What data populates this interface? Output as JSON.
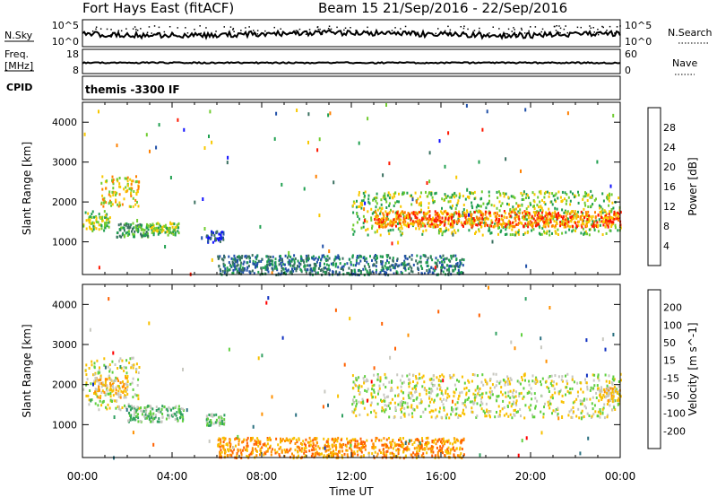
{
  "header": {
    "title": "Fort Hays East (fitACF)",
    "beam_date": "Beam 15  21/Sep/2016 - 22/Sep/2016"
  },
  "strip_panels": {
    "nsky": {
      "left_label": "N.Sky",
      "left_ticks": [
        "10^5",
        "10^0"
      ],
      "right_ticks": [
        "10^5",
        "10^0"
      ],
      "right_label": "N.Search",
      "right_label_style": "dotted"
    },
    "freq": {
      "left_label_line1": "Freq.",
      "left_label_line2": "[MHz]",
      "left_ticks": [
        "18",
        "8"
      ],
      "right_ticks": [
        "60",
        "0"
      ],
      "right_label": "Nave",
      "right_label_style": "dotted"
    },
    "cpid": {
      "left_label": "CPID",
      "program": "themis -3300 IF"
    }
  },
  "x_axis": {
    "label": "Time UT",
    "ticks": [
      "00:00",
      "04:00",
      "08:00",
      "12:00",
      "16:00",
      "20:00",
      "00:00"
    ]
  },
  "chart_data": [
    {
      "type": "heatmap",
      "name": "power",
      "ylabel": "Slant Range [km]",
      "ylim": [
        180,
        4500
      ],
      "y_ticks": [
        1000,
        2000,
        3000,
        4000
      ],
      "xlim_hours": [
        0,
        24
      ],
      "colorbar": {
        "label": "Power [dB]",
        "ticks": [
          4,
          8,
          12,
          16,
          20,
          24,
          28
        ],
        "colors": [
          "#1010ff",
          "#2050a8",
          "#3a7060",
          "#20a050",
          "#70cc30",
          "#f8c800",
          "#ff8000",
          "#ff1800"
        ]
      },
      "regions": [
        {
          "t": [
            0.0,
            1.2
          ],
          "range": [
            1300,
            1800
          ],
          "level": 4
        },
        {
          "t": [
            0.8,
            2.5
          ],
          "range": [
            1900,
            2700
          ],
          "level": 5
        },
        {
          "t": [
            1.5,
            3.0
          ],
          "range": [
            1150,
            1500
          ],
          "level": 3
        },
        {
          "t": [
            3.0,
            4.3
          ],
          "range": [
            1200,
            1500
          ],
          "level": 4
        },
        {
          "t": [
            5.5,
            6.3
          ],
          "range": [
            1000,
            1300
          ],
          "level": 1
        },
        {
          "t": [
            12.0,
            24.0
          ],
          "range": [
            1200,
            2300
          ],
          "level": 4
        },
        {
          "t": [
            13.0,
            24.0
          ],
          "range": [
            1400,
            1800
          ],
          "level": 6
        },
        {
          "t": [
            6.0,
            17.0
          ],
          "range": [
            200,
            700
          ],
          "level": 2
        }
      ]
    },
    {
      "type": "heatmap",
      "name": "velocity",
      "ylabel": "Slant Range [km]",
      "ylim": [
        180,
        4500
      ],
      "y_ticks": [
        1000,
        2000,
        3000,
        4000
      ],
      "xlim_hours": [
        0,
        24
      ],
      "colorbar": {
        "label": "Velocity [m s^-1]",
        "ticks": [
          200,
          100,
          50,
          15,
          -15,
          -50,
          -100,
          -200
        ],
        "colors": [
          "#1030c0",
          "#2a7080",
          "#30a060",
          "#60d040",
          "#c8c8c0",
          "#f8c000",
          "#ff9000",
          "#ff6000",
          "#ff0000"
        ]
      },
      "regions": [
        {
          "t": [
            0.0,
            2.5
          ],
          "range": [
            1400,
            2700
          ],
          "level": 4
        },
        {
          "t": [
            0.5,
            2.0
          ],
          "range": [
            1700,
            2200
          ],
          "level": 5
        },
        {
          "t": [
            2.0,
            4.5
          ],
          "range": [
            1100,
            1500
          ],
          "level": 3
        },
        {
          "t": [
            5.5,
            6.3
          ],
          "range": [
            1000,
            1300
          ],
          "level": 3
        },
        {
          "t": [
            12.0,
            24.0
          ],
          "range": [
            1200,
            2300
          ],
          "level": 4
        },
        {
          "t": [
            23.0,
            24.0
          ],
          "range": [
            1600,
            2000
          ],
          "level": 5
        },
        {
          "t": [
            6.0,
            17.0
          ],
          "range": [
            200,
            700
          ],
          "level": 6
        }
      ]
    }
  ]
}
